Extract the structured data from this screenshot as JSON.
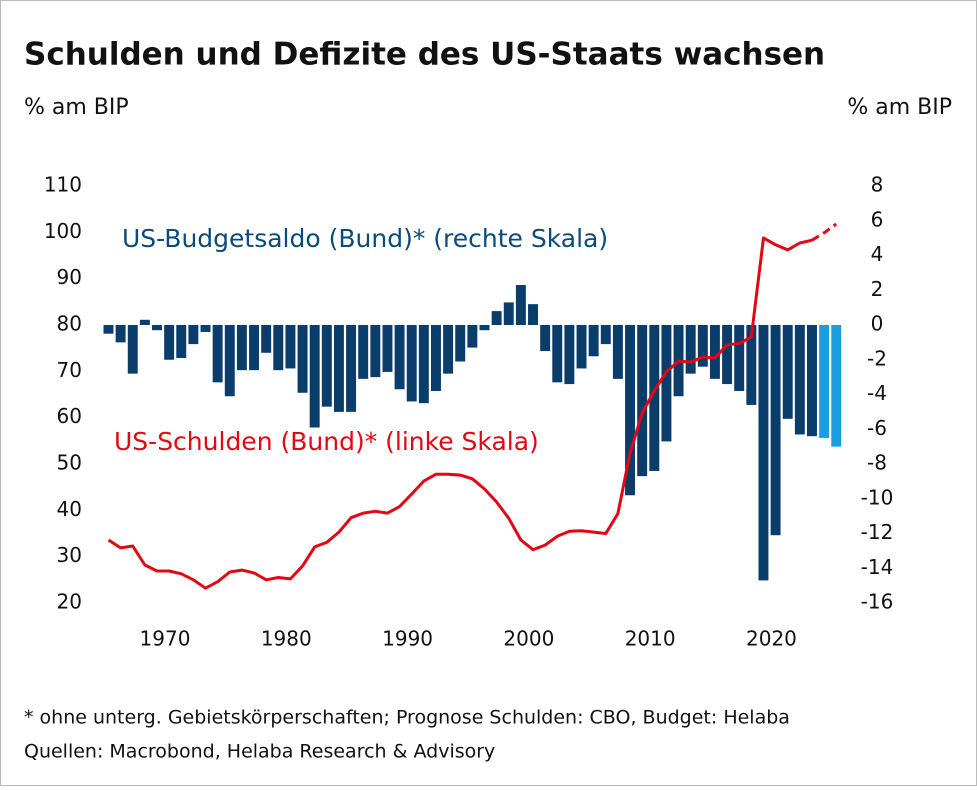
{
  "chart_data": {
    "type": "combo",
    "title": "Schulden und Defizite des US-Staats wachsen",
    "y_label": "% am BIP",
    "y2_label": "% am BIP",
    "annotations": [
      "US-Budgetsaldo (Bund)* (rechte Skala)",
      "US-Schulden (Bund)* (linke Skala)"
    ],
    "footnote": "* ohne unterg. Gebietskörperschaften; Prognose Schulden: CBO, Budget: Helaba",
    "source": "Quellen: Macrobond, Helaba Research & Advisory",
    "x": [
      1966,
      1967,
      1968,
      1969,
      1970,
      1971,
      1972,
      1973,
      1974,
      1975,
      1976,
      1977,
      1978,
      1979,
      1980,
      1981,
      1982,
      1983,
      1984,
      1985,
      1986,
      1987,
      1988,
      1989,
      1990,
      1991,
      1992,
      1993,
      1994,
      1995,
      1996,
      1997,
      1998,
      1999,
      2000,
      2001,
      2002,
      2003,
      2004,
      2005,
      2006,
      2007,
      2008,
      2009,
      2010,
      2011,
      2012,
      2013,
      2014,
      2015,
      2016,
      2017,
      2018,
      2019,
      2020,
      2021,
      2022,
      2023,
      2024,
      2025,
      2026
    ],
    "xlim": [
      1965.3,
      2027.3
    ],
    "xticks": [
      1970,
      1980,
      1990,
      2000,
      2010,
      2020
    ],
    "ylim": [
      20,
      110
    ],
    "yticks": [
      20,
      30,
      40,
      50,
      60,
      70,
      80,
      90,
      100,
      110
    ],
    "y2lim": [
      -16,
      8
    ],
    "y2ticks": [
      -16,
      -14,
      -12,
      -10,
      -8,
      -6,
      -4,
      -2,
      0,
      2,
      4,
      6,
      8
    ],
    "grid": false,
    "series": [
      {
        "type": "bar",
        "axis": "y2",
        "color": "#0b3d6b",
        "forecast_color": "#1a9ee0",
        "forecast_from": 2025,
        "values": [
          -0.5,
          -1.0,
          -2.8,
          0.3,
          -0.3,
          -2.0,
          -1.9,
          -1.1,
          -0.4,
          -3.3,
          -4.1,
          -2.6,
          -2.6,
          -1.6,
          -2.6,
          -2.5,
          -3.9,
          -5.9,
          -4.7,
          -5.0,
          -5.0,
          -3.1,
          -3.0,
          -2.7,
          -3.7,
          -4.4,
          -4.5,
          -3.8,
          -2.8,
          -2.1,
          -1.3,
          -0.3,
          0.8,
          1.3,
          2.3,
          1.2,
          -1.5,
          -3.3,
          -3.4,
          -2.5,
          -1.8,
          -1.1,
          -3.1,
          -9.8,
          -8.7,
          -8.4,
          -6.7,
          -4.1,
          -2.8,
          -2.4,
          -3.1,
          -3.4,
          -3.8,
          -4.6,
          -14.7,
          -12.1,
          -5.4,
          -6.3,
          -6.4,
          -6.5,
          -7.0
        ]
      },
      {
        "type": "line",
        "axis": "y",
        "color": "#e30613",
        "values": [
          33.6,
          31.9,
          32.3,
          28.2,
          26.9,
          26.9,
          26.3,
          25.0,
          23.2,
          24.6,
          26.7,
          27.1,
          26.5,
          25.0,
          25.5,
          25.2,
          28.0,
          32.1,
          33.1,
          35.3,
          38.4,
          39.4,
          39.8,
          39.4,
          40.8,
          43.5,
          46.3,
          47.8,
          47.8,
          47.6,
          46.8,
          44.6,
          41.8,
          38.3,
          33.6,
          31.5,
          32.5,
          34.4,
          35.5,
          35.6,
          35.3,
          35.0,
          39.3,
          52.3,
          61.0,
          65.8,
          69.9,
          72.2,
          72.0,
          73.1,
          72.9,
          75.7,
          76.0,
          77.4,
          98.8,
          97.3,
          96.2,
          97.7,
          98.3,
          null,
          null
        ]
      },
      {
        "type": "line",
        "axis": "y",
        "color": "#e30613",
        "dashed": true,
        "values": [
          null,
          null,
          null,
          null,
          null,
          null,
          null,
          null,
          null,
          null,
          null,
          null,
          null,
          null,
          null,
          null,
          null,
          null,
          null,
          null,
          null,
          null,
          null,
          null,
          null,
          null,
          null,
          null,
          null,
          null,
          null,
          null,
          null,
          null,
          null,
          null,
          null,
          null,
          null,
          null,
          null,
          null,
          null,
          null,
          null,
          null,
          null,
          null,
          null,
          null,
          null,
          null,
          null,
          null,
          null,
          null,
          null,
          null,
          98.3,
          99.9,
          101.8
        ]
      }
    ]
  }
}
